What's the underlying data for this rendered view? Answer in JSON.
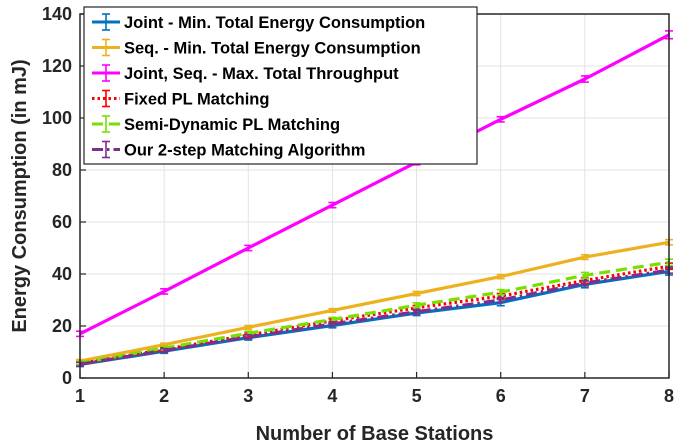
{
  "chart_data": {
    "type": "line",
    "title": "",
    "xlabel": "Number of Base Stations",
    "ylabel": "Energy Consumption (in mJ)",
    "xlim": [
      1,
      8
    ],
    "ylim": [
      0,
      140
    ],
    "x_ticks": [
      1,
      2,
      3,
      4,
      5,
      6,
      7,
      8
    ],
    "y_ticks": [
      0,
      20,
      40,
      60,
      80,
      100,
      120,
      140
    ],
    "grid": true,
    "legend_placement": "top-left",
    "x": [
      1,
      2,
      3,
      4,
      5,
      6,
      7,
      8
    ],
    "series": [
      {
        "name": "Joint - Min. Total Energy Consumption",
        "color": "#0072BD",
        "line_style": "solid",
        "values": [
          5.2,
          10.3,
          15.5,
          20.2,
          25.0,
          29.0,
          36.0,
          41.0
        ],
        "error": [
          0.8,
          0.8,
          0.9,
          0.9,
          1.0,
          1.2,
          1.3,
          1.4
        ]
      },
      {
        "name": "Seq. - Min. Total Energy Consumption",
        "color": "#EDB120",
        "line_style": "solid",
        "values": [
          6.5,
          12.8,
          19.5,
          26.0,
          32.5,
          39.0,
          46.5,
          52.2
        ],
        "error": [
          0.6,
          0.6,
          0.7,
          0.7,
          0.8,
          0.8,
          0.9,
          1.0
        ]
      },
      {
        "name": "Joint, Seq. - Max. Total Throughput",
        "color": "#FF00FF",
        "line_style": "solid",
        "values": [
          17.0,
          33.3,
          50.0,
          66.5,
          83.0,
          99.5,
          115.0,
          132.0
        ],
        "error": [
          1.0,
          1.0,
          1.0,
          1.0,
          1.0,
          1.0,
          1.2,
          1.5
        ]
      },
      {
        "name": "Fixed PL Matching",
        "color": "#FF0000",
        "line_style": "dotted",
        "values": [
          5.5,
          11.0,
          16.5,
          22.0,
          27.0,
          31.5,
          37.5,
          43.0
        ],
        "error": [
          0.7,
          0.7,
          0.8,
          0.8,
          0.9,
          1.0,
          1.1,
          1.2
        ]
      },
      {
        "name": "Semi-Dynamic PL Matching",
        "color": "#77E000",
        "line_style": "dashed",
        "values": [
          5.8,
          11.5,
          17.2,
          22.5,
          28.0,
          33.0,
          39.5,
          44.5
        ],
        "error": [
          0.7,
          0.7,
          0.8,
          0.8,
          0.9,
          1.0,
          1.1,
          1.2
        ]
      },
      {
        "name": "Our 2-step Matching Algorithm",
        "color": "#7E2F8E",
        "line_style": "dashdot",
        "values": [
          5.3,
          10.6,
          15.8,
          20.8,
          25.5,
          30.0,
          36.5,
          41.5
        ],
        "error": [
          0.7,
          0.7,
          0.8,
          0.8,
          0.9,
          1.0,
          1.1,
          1.2
        ]
      }
    ]
  }
}
